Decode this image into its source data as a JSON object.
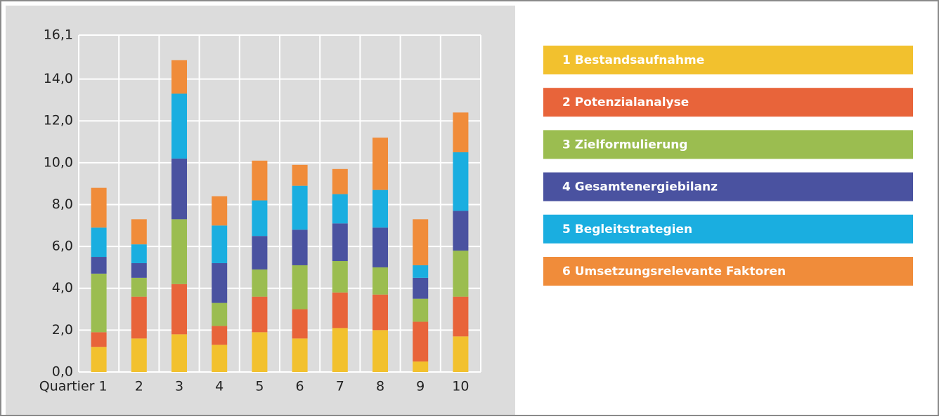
{
  "chart_data": {
    "type": "stacked_bar",
    "categories": [
      "Quartier 1",
      "2",
      "3",
      "4",
      "5",
      "6",
      "7",
      "8",
      "9",
      "10"
    ],
    "series": [
      {
        "name": "1 Bestandsaufnahme",
        "color": "#f2c12e",
        "values": [
          1.2,
          1.6,
          1.8,
          1.3,
          1.9,
          1.6,
          2.1,
          2.0,
          0.5,
          1.7
        ]
      },
      {
        "name": "2 Potenzialanalyse",
        "color": "#e8643a",
        "values": [
          0.7,
          2.0,
          2.4,
          0.9,
          1.7,
          1.4,
          1.7,
          1.7,
          1.9,
          1.9
        ]
      },
      {
        "name": "3 Zielformulierung",
        "color": "#9bbd50",
        "values": [
          2.8,
          0.9,
          3.1,
          1.1,
          1.3,
          2.1,
          1.5,
          1.3,
          1.1,
          2.2
        ]
      },
      {
        "name": "4 Gesamtenergiebilanz",
        "color": "#4a52a0",
        "values": [
          0.8,
          0.7,
          2.9,
          1.9,
          1.6,
          1.7,
          1.8,
          1.9,
          1.0,
          1.9
        ]
      },
      {
        "name": "5 Begleitstrategien",
        "color": "#1aaee0",
        "values": [
          1.4,
          0.9,
          3.1,
          1.8,
          1.7,
          2.1,
          1.4,
          1.8,
          0.6,
          2.8
        ]
      },
      {
        "name": "6 Umsetzungsrelevante Faktoren",
        "color": "#f08c3a",
        "values": [
          1.9,
          1.2,
          1.6,
          1.4,
          1.9,
          1.0,
          1.2,
          2.5,
          2.2,
          1.9
        ]
      }
    ],
    "ylim": [
      0,
      16.1
    ],
    "yticks": [
      {
        "value": 0,
        "label": "0,0"
      },
      {
        "value": 2,
        "label": "2,0"
      },
      {
        "value": 4,
        "label": "4,0"
      },
      {
        "value": 6,
        "label": "6,0"
      },
      {
        "value": 8,
        "label": "8,0"
      },
      {
        "value": 10,
        "label": "10,0"
      },
      {
        "value": 12,
        "label": "12,0"
      },
      {
        "value": 14,
        "label": "14,0"
      },
      {
        "value": 16.1,
        "label": "16,1"
      }
    ],
    "grid": true,
    "legend": "right"
  }
}
